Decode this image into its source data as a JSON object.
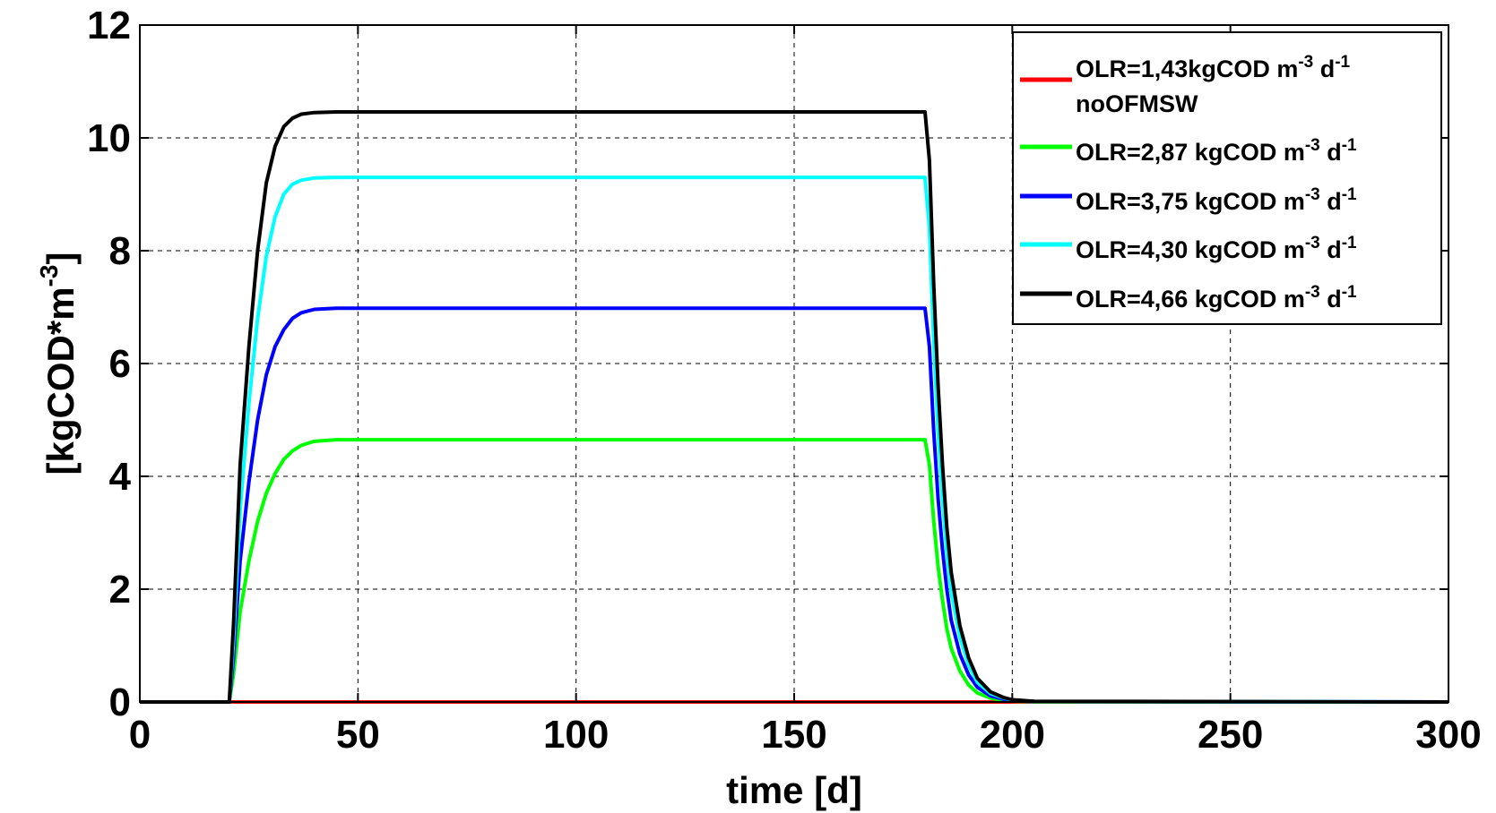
{
  "chart_data": {
    "type": "line",
    "xlabel": "time [d]",
    "ylabel": {
      "main": "[kgCOD*m",
      "sup": "-3",
      "close": "]"
    },
    "xlim": [
      0,
      300
    ],
    "ylim": [
      0,
      12
    ],
    "xticks": [
      "0",
      "50",
      "100",
      "150",
      "200",
      "250",
      "300"
    ],
    "yticks": [
      "0",
      "2",
      "4",
      "6",
      "8",
      "10",
      "12"
    ],
    "grid": true,
    "legend_position": "top-right",
    "series": [
      {
        "name": "OLR=1,43kgCOD m-3 d-1 noOFMSW",
        "color": "#ff0000",
        "legend": {
          "line1": "OLR=1,43kgCOD m",
          "sup1": "-3",
          "mid": " d",
          "sup2": "-1",
          "line2": "noOFMSW"
        },
        "x": [
          0,
          300
        ],
        "y": [
          0,
          0
        ]
      },
      {
        "name": "OLR=2,87 kgCOD m-3 d-1",
        "color": "#00ff00",
        "legend": {
          "line1": "OLR=2,87 kgCOD m",
          "sup1": "-3",
          "mid": " d",
          "sup2": "-1"
        },
        "x": [
          0,
          20.5,
          21.5,
          23,
          25,
          27,
          29,
          31,
          33,
          35,
          37,
          40,
          45,
          180,
          181,
          182,
          183,
          184,
          185,
          186,
          188,
          190,
          192,
          195,
          198,
          200,
          205,
          300
        ],
        "y": [
          0,
          0,
          0.5,
          1.6,
          2.5,
          3.2,
          3.7,
          4.05,
          4.3,
          4.45,
          4.55,
          4.62,
          4.65,
          4.65,
          4.2,
          3.2,
          2.4,
          1.8,
          1.3,
          0.95,
          0.55,
          0.3,
          0.16,
          0.07,
          0.03,
          0.015,
          0.005,
          0
        ]
      },
      {
        "name": "OLR=3,75 kgCOD m-3 d-1",
        "color": "#0000ff",
        "legend": {
          "line1": "OLR=3,75 kgCOD m",
          "sup1": "-3",
          "mid": " d",
          "sup2": "-1"
        },
        "x": [
          0,
          20.5,
          21.5,
          23,
          25,
          27,
          29,
          31,
          33,
          35,
          37,
          40,
          45,
          180,
          181,
          182,
          183,
          184,
          185,
          186,
          188,
          190,
          192,
          195,
          198,
          200,
          205,
          300
        ],
        "y": [
          0,
          0,
          0.8,
          2.5,
          3.9,
          5.0,
          5.8,
          6.3,
          6.6,
          6.8,
          6.9,
          6.96,
          6.98,
          6.98,
          6.3,
          4.8,
          3.6,
          2.7,
          2.0,
          1.45,
          0.85,
          0.48,
          0.26,
          0.11,
          0.05,
          0.025,
          0.008,
          0
        ]
      },
      {
        "name": "OLR=4,30 kgCOD m-3 d-1",
        "color": "#00ffff",
        "legend": {
          "line1": "OLR=4,30 kgCOD m",
          "sup1": "-3",
          "mid": " d",
          "sup2": "-1"
        },
        "x": [
          0,
          20.5,
          21.5,
          23,
          25,
          27,
          29,
          31,
          33,
          35,
          37,
          40,
          45,
          180,
          181,
          182,
          183,
          184,
          185,
          186,
          188,
          190,
          192,
          195,
          198,
          200,
          205,
          300
        ],
        "y": [
          0,
          0,
          1.1,
          3.4,
          5.3,
          6.8,
          7.9,
          8.6,
          9.0,
          9.18,
          9.25,
          9.29,
          9.3,
          9.3,
          8.4,
          6.4,
          4.8,
          3.6,
          2.65,
          1.95,
          1.15,
          0.65,
          0.35,
          0.15,
          0.07,
          0.035,
          0.01,
          0
        ]
      },
      {
        "name": "OLR=4,66 kgCOD m-3 d-1",
        "color": "#000000",
        "legend": {
          "line1": "OLR=4,66 kgCOD m",
          "sup1": "-3",
          "mid": " d",
          "sup2": "-1"
        },
        "x": [
          0,
          20.5,
          21.5,
          23,
          25,
          27,
          29,
          31,
          33,
          35,
          37,
          40,
          45,
          180,
          181,
          182,
          183,
          184,
          185,
          186,
          188,
          190,
          192,
          195,
          198,
          200,
          205,
          300
        ],
        "y": [
          0,
          0,
          1.4,
          4.2,
          6.3,
          8.0,
          9.2,
          9.85,
          10.2,
          10.35,
          10.42,
          10.45,
          10.46,
          10.46,
          9.6,
          7.4,
          5.6,
          4.2,
          3.1,
          2.3,
          1.35,
          0.78,
          0.42,
          0.18,
          0.08,
          0.04,
          0.012,
          0
        ]
      }
    ]
  }
}
